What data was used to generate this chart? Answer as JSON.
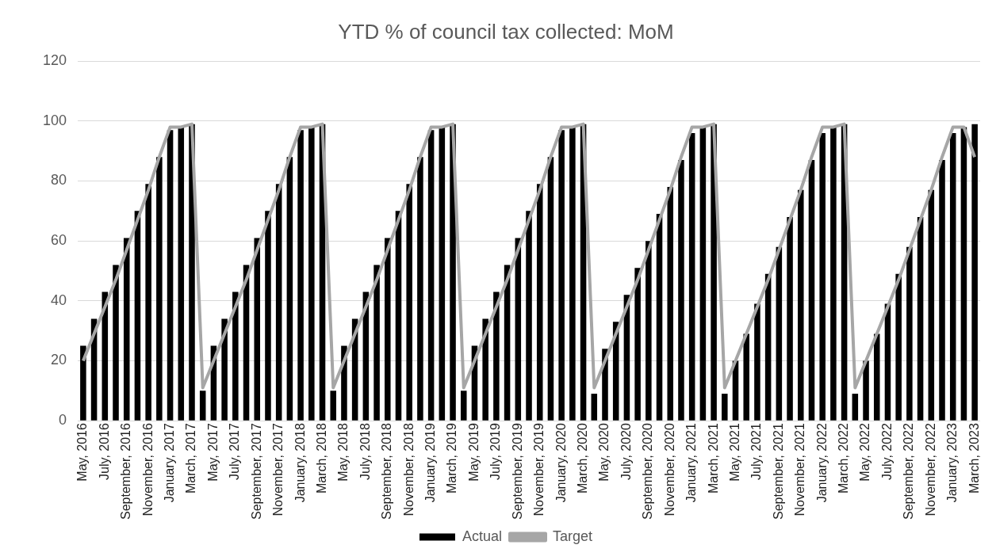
{
  "chart_data": {
    "type": "bar",
    "title": "YTD % of council tax collected: MoM",
    "categories": [
      "May, 2016",
      null,
      "July, 2016",
      null,
      "September, 2016",
      null,
      "November, 2016",
      null,
      "January, 2017",
      null,
      "March, 2017",
      null,
      "May, 2017",
      null,
      "July, 2017",
      null,
      "September, 2017",
      null,
      "November, 2017",
      null,
      "January, 2018",
      null,
      "March, 2018",
      null,
      "May, 2018",
      null,
      "July, 2018",
      null,
      "September, 2018",
      null,
      "November, 2018",
      null,
      "January, 2019",
      null,
      "March, 2019",
      null,
      "May, 2019",
      null,
      "July, 2019",
      null,
      "September, 2019",
      null,
      "November, 2019",
      null,
      "January, 2020",
      null,
      "March, 2020",
      null,
      "May, 2020",
      null,
      "July, 2020",
      null,
      "September, 2020",
      null,
      "November, 2020",
      null,
      "January, 2021",
      null,
      "March, 2021",
      null,
      "May, 2021",
      null,
      "July, 2021",
      null,
      "September, 2021",
      null,
      "November, 2021",
      null,
      "January, 2022",
      null,
      "March, 2022",
      null,
      "May, 2022",
      null,
      "July, 2022",
      null,
      "September, 2022",
      null,
      "November, 2022",
      null,
      "January, 2023",
      null,
      "March, 2023"
    ],
    "series": [
      {
        "name": "Actual",
        "color": "#000000",
        "values": [
          25,
          34,
          43,
          52,
          61,
          70,
          79,
          88,
          97,
          98,
          99,
          10,
          25,
          34,
          43,
          52,
          61,
          70,
          79,
          88,
          97,
          98,
          99,
          10,
          25,
          34,
          43,
          52,
          61,
          70,
          79,
          88,
          97,
          98,
          99,
          10,
          25,
          34,
          43,
          52,
          61,
          70,
          79,
          88,
          97,
          98,
          99,
          9,
          24,
          33,
          42,
          51,
          60,
          69,
          78,
          87,
          96,
          98,
          99,
          9,
          20,
          29,
          39,
          49,
          58,
          68,
          77,
          87,
          96,
          98,
          99,
          9,
          20,
          29,
          39,
          49,
          58,
          68,
          77,
          87,
          96,
          98,
          99
        ]
      },
      {
        "name": "Target",
        "type": "line",
        "color": "#a6a6a6",
        "values": [
          20,
          29,
          38,
          47,
          57,
          67,
          77,
          88,
          98,
          98,
          99,
          11,
          20,
          29,
          38,
          47,
          57,
          67,
          77,
          88,
          98,
          98,
          99,
          11,
          20,
          29,
          38,
          47,
          57,
          67,
          77,
          88,
          98,
          98,
          99,
          11,
          20,
          29,
          38,
          47,
          57,
          67,
          77,
          88,
          98,
          98,
          99,
          11,
          20,
          29,
          38,
          47,
          57,
          67,
          77,
          88,
          98,
          98,
          99,
          11,
          20,
          29,
          38,
          47,
          57,
          67,
          77,
          88,
          98,
          98,
          99,
          11,
          20,
          29,
          38,
          47,
          57,
          67,
          77,
          88,
          98,
          98,
          88
        ]
      }
    ],
    "ylim": [
      0,
      120
    ],
    "yticks": [
      0,
      20,
      40,
      60,
      80,
      100,
      120
    ],
    "grid": "y",
    "legend": "bottom",
    "marker": "none",
    "line_style": "solid"
  }
}
